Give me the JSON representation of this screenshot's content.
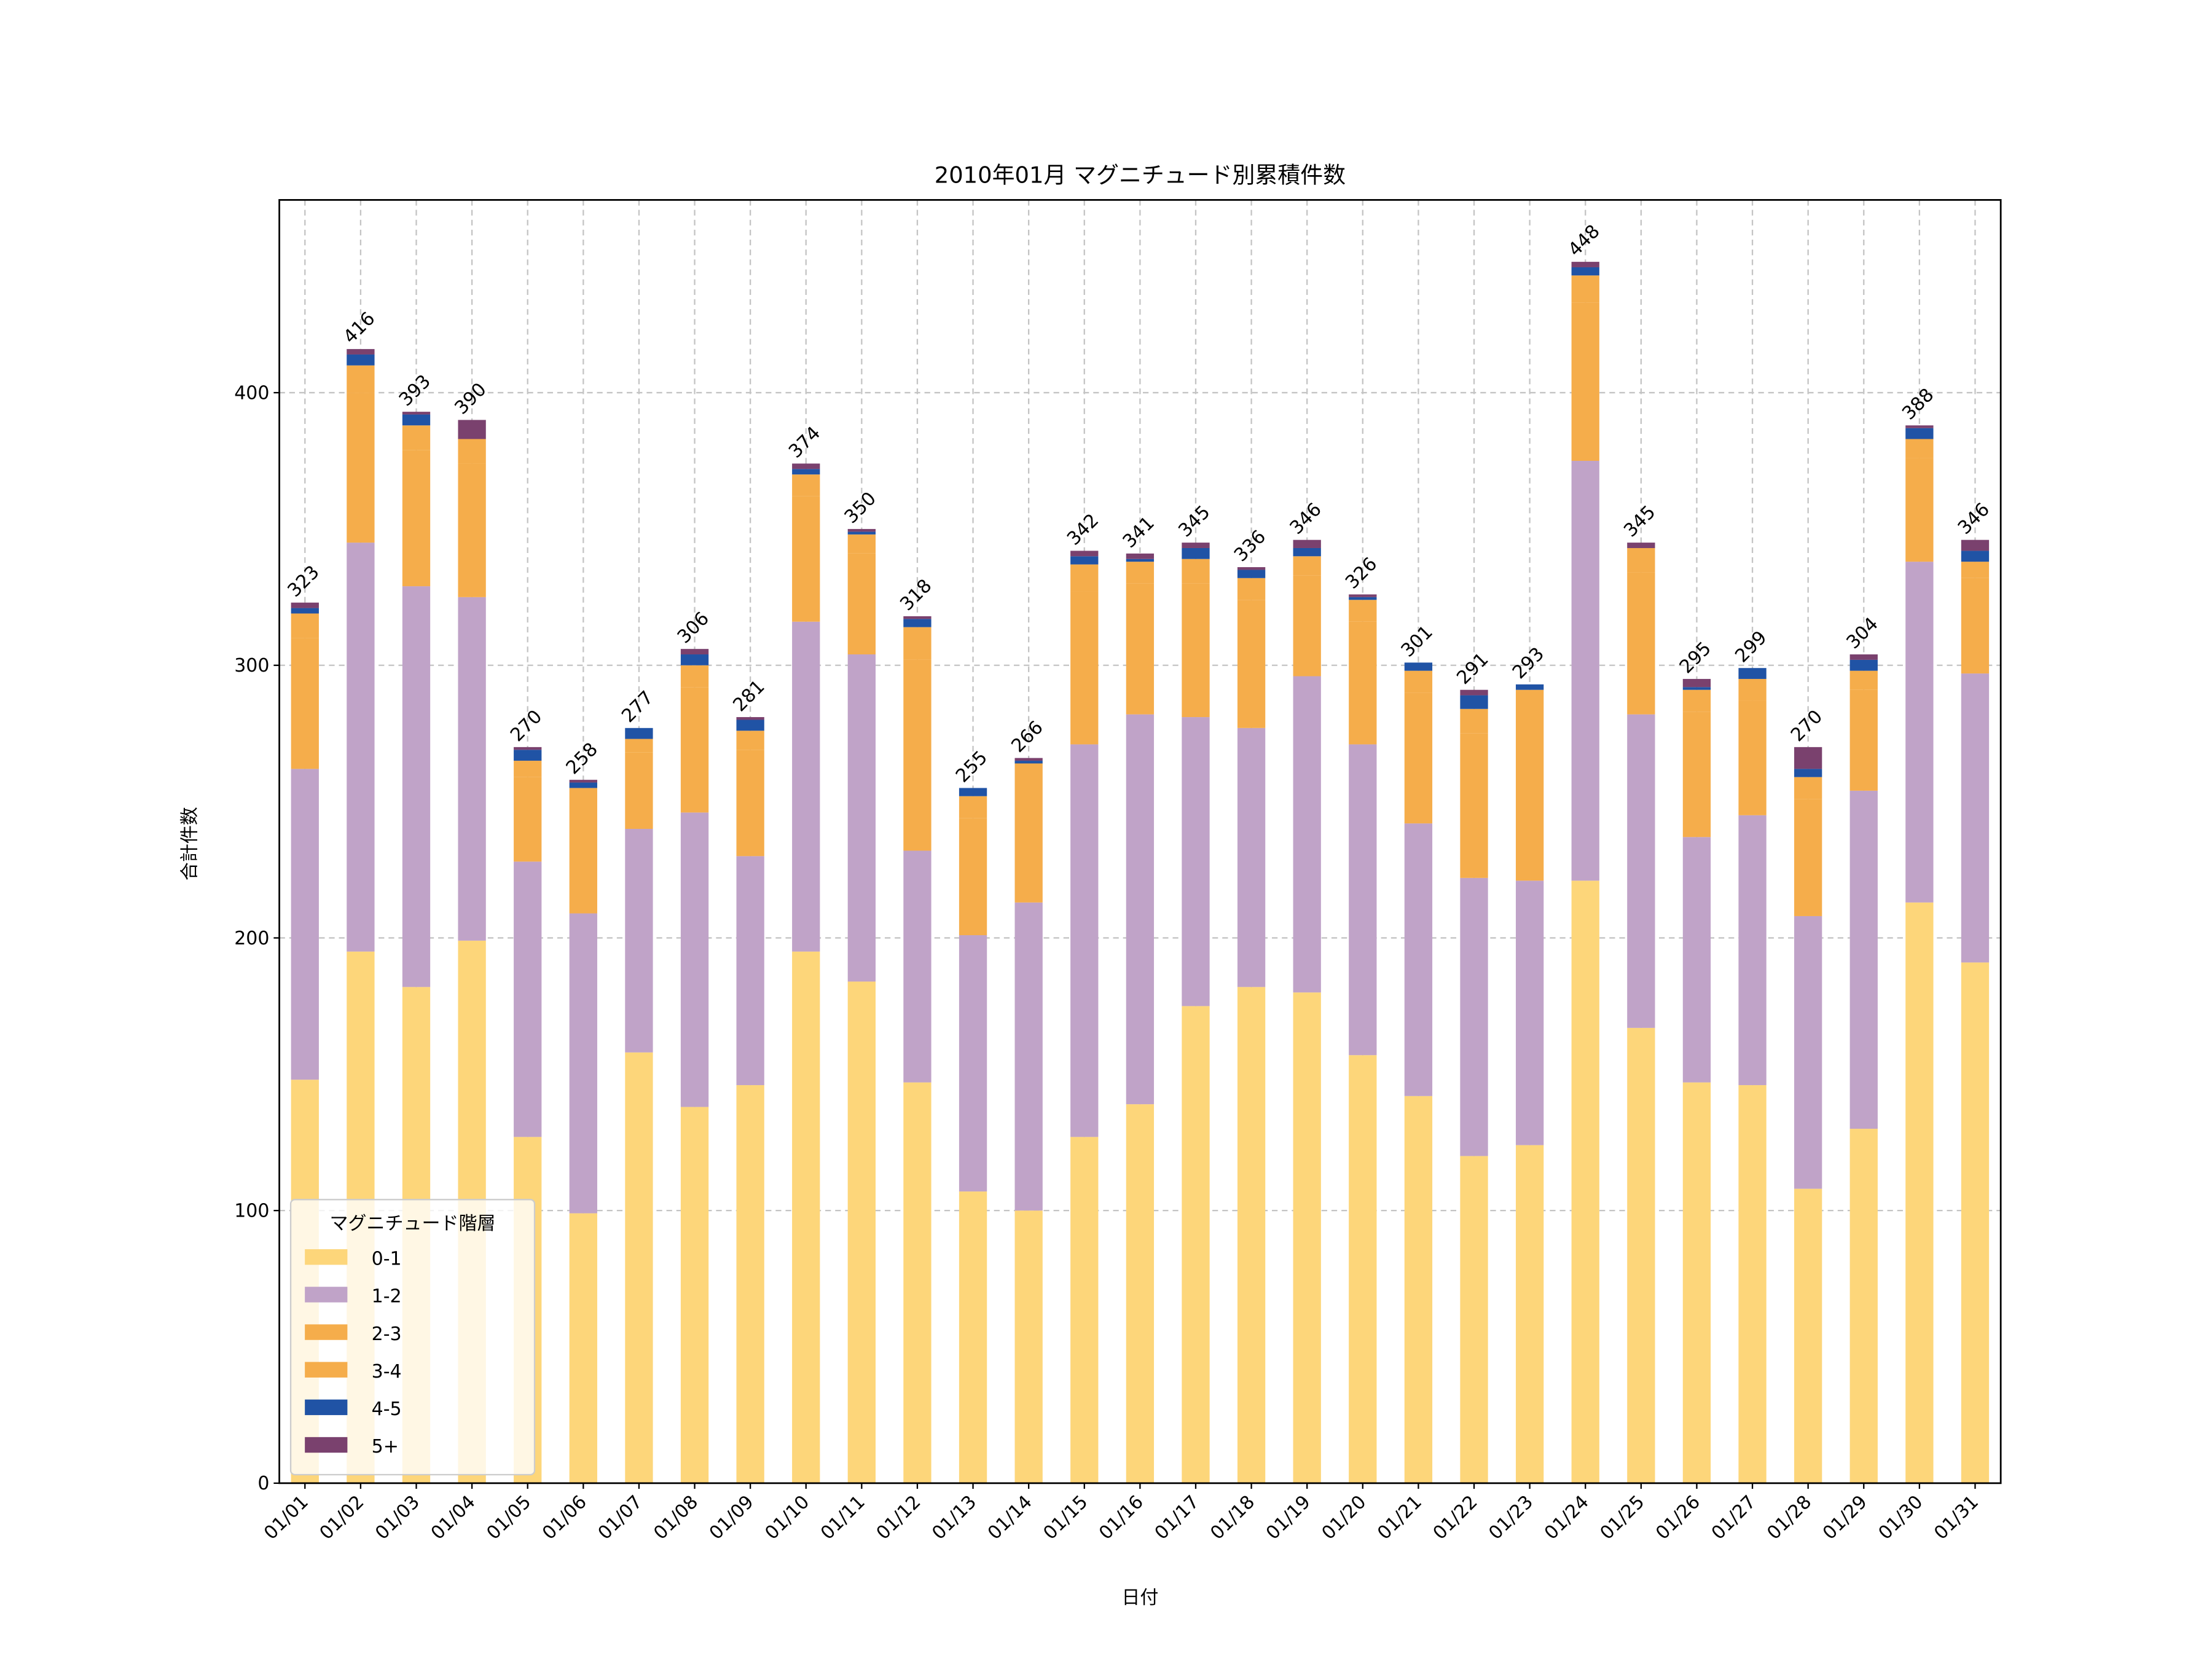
{
  "chart_data": {
    "type": "bar",
    "stacked": true,
    "title": "2010年01月 マグニチュード別累積件数",
    "xlabel": "日付",
    "ylabel": "合計件数",
    "ylim": [
      0,
      470.7
    ],
    "yticks": [
      0,
      100,
      200,
      300,
      400
    ],
    "grid": true,
    "legend": {
      "title": "マグニチュード階層",
      "placement": "lower-left"
    },
    "categories": [
      "01/01",
      "01/02",
      "01/03",
      "01/04",
      "01/05",
      "01/06",
      "01/07",
      "01/08",
      "01/09",
      "01/10",
      "01/11",
      "01/12",
      "01/13",
      "01/14",
      "01/15",
      "01/16",
      "01/17",
      "01/18",
      "01/19",
      "01/20",
      "01/21",
      "01/22",
      "01/23",
      "01/24",
      "01/25",
      "01/26",
      "01/27",
      "01/28",
      "01/29",
      "01/30",
      "01/31"
    ],
    "series": [
      {
        "name": "0-1",
        "color": "#FDD67A",
        "values": [
          148,
          195,
          182,
          199,
          127,
          99,
          158,
          138,
          146,
          195,
          184,
          147,
          107,
          100,
          127,
          139,
          175,
          182,
          180,
          157,
          142,
          120,
          124,
          221,
          167,
          147,
          146,
          108,
          130,
          213,
          191
        ]
      },
      {
        "name": "1-2",
        "color": "#C0A3C8",
        "values": [
          114,
          150,
          147,
          126,
          101,
          110,
          82,
          108,
          84,
          121,
          120,
          85,
          94,
          113,
          144,
          143,
          106,
          95,
          116,
          114,
          100,
          102,
          97,
          154,
          115,
          90,
          99,
          100,
          124,
          125,
          106
        ]
      },
      {
        "name": "2-3",
        "color": "#F5AD4B",
        "values": [
          48,
          55,
          50,
          49,
          31,
          39,
          28,
          46,
          39,
          46,
          37,
          70,
          43,
          43,
          56,
          48,
          49,
          47,
          37,
          45,
          48,
          53,
          59,
          58,
          52,
          46,
          42,
          43,
          37,
          38,
          35
        ]
      },
      {
        "name": "3-4",
        "color": "#F5AD4B",
        "values": [
          9,
          10,
          9,
          9,
          6,
          7,
          5,
          8,
          7,
          8,
          7,
          12,
          8,
          8,
          10,
          8,
          9,
          8,
          7,
          8,
          8,
          9,
          11,
          10,
          9,
          8,
          8,
          8,
          7,
          7,
          6
        ]
      },
      {
        "name": "4-5",
        "color": "#2053A5",
        "values": [
          2,
          4,
          4,
          0,
          4,
          2,
          4,
          4,
          4,
          2,
          1,
          3,
          3,
          1,
          3,
          1,
          4,
          3,
          3,
          1,
          3,
          5,
          2,
          3,
          0,
          1,
          4,
          3,
          4,
          4,
          4
        ]
      },
      {
        "name": "5+",
        "color": "#7A416E",
        "values": [
          2,
          2,
          1,
          7,
          1,
          1,
          0,
          2,
          1,
          2,
          1,
          1,
          0,
          1,
          2,
          2,
          2,
          1,
          3,
          1,
          0,
          2,
          0,
          2,
          2,
          3,
          0,
          8,
          2,
          1,
          4
        ]
      }
    ],
    "totals": [
      "323",
      "416",
      "393",
      "390",
      "270",
      "258",
      "277",
      "306",
      "281",
      "374",
      "350",
      "318",
      "255",
      "266",
      "342",
      "341",
      "345",
      "336",
      "346",
      "326",
      "301",
      "291",
      "293",
      "448",
      "345",
      "295",
      "299",
      "270",
      "304",
      "388",
      "346"
    ]
  }
}
